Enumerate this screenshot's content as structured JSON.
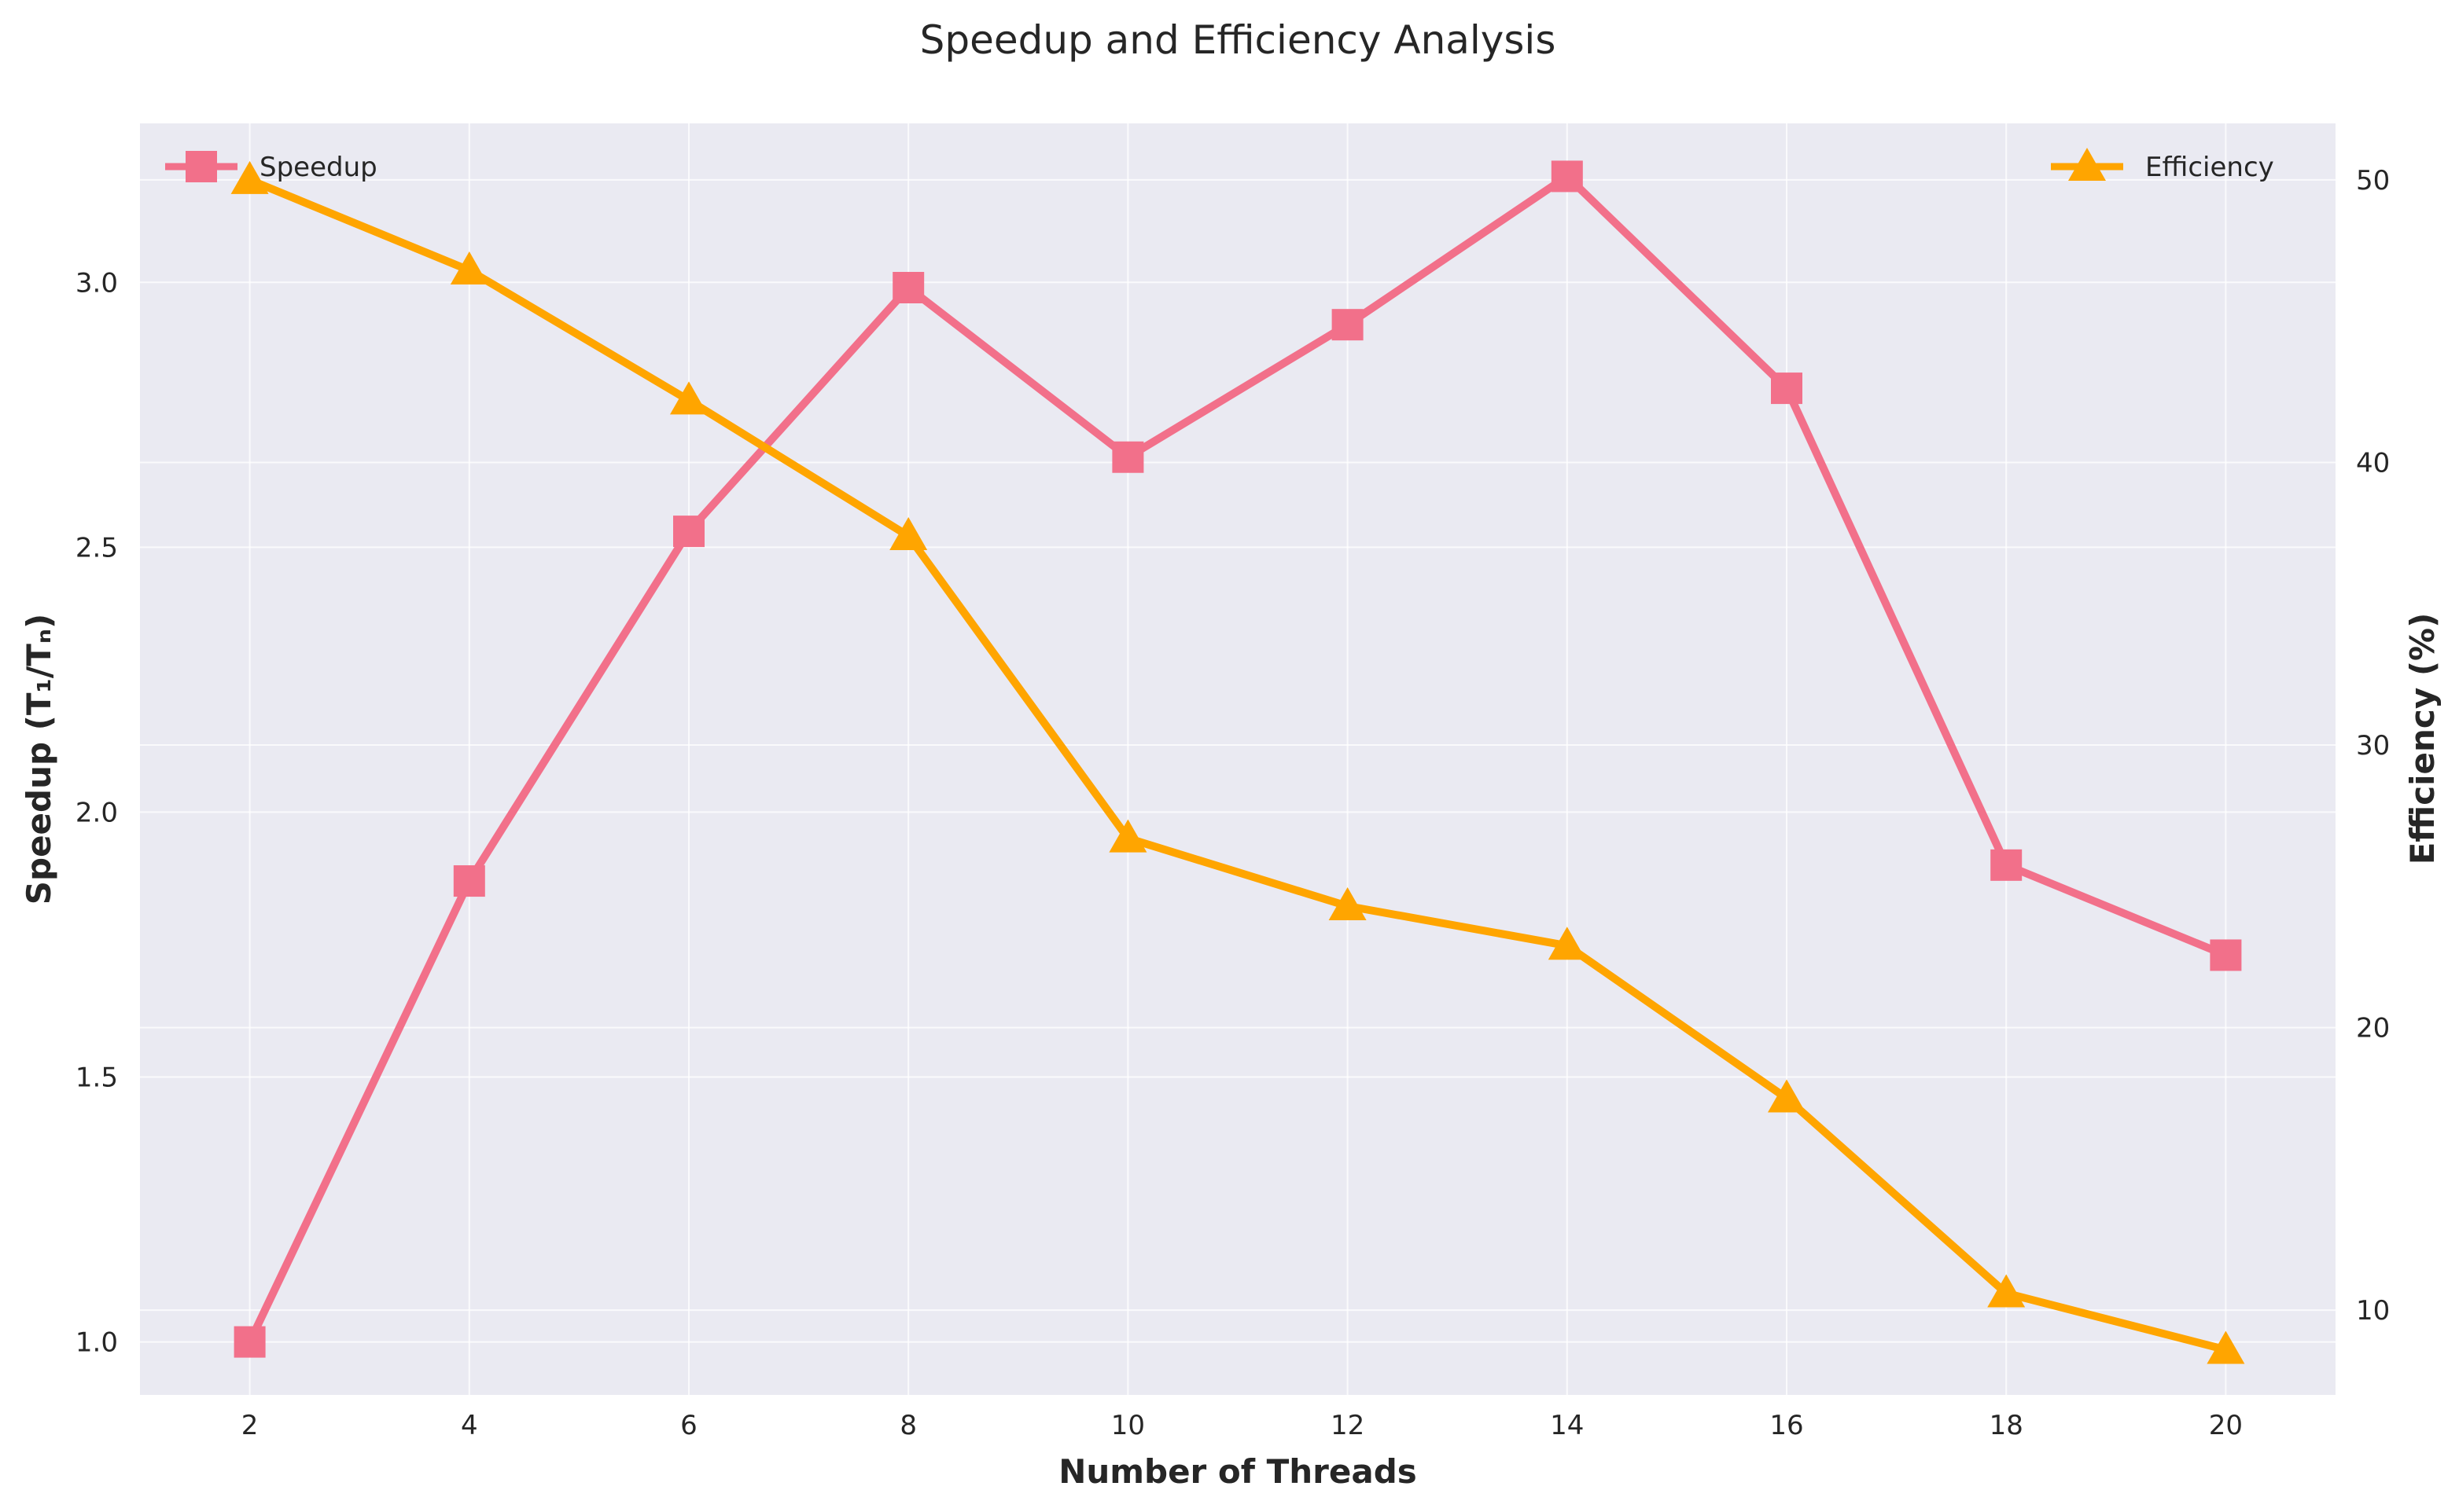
{
  "chart_data": {
    "type": "line",
    "title": "Speedup and Efficiency Analysis",
    "xlabel": "Number of Threads",
    "ylabel_left": "Speedup (T₁/Tₙ)",
    "ylabel_right": "Efficiency (%)",
    "x": [
      2,
      4,
      6,
      8,
      10,
      12,
      14,
      16,
      18,
      20
    ],
    "xlim": [
      1,
      21
    ],
    "x_ticks": [
      "2",
      "4",
      "6",
      "8",
      "10",
      "12",
      "14",
      "16",
      "18",
      "20"
    ],
    "ylim_left": [
      0.9,
      3.3
    ],
    "y_ticks_left": [
      "1.0",
      "1.5",
      "2.0",
      "2.5",
      "3.0"
    ],
    "ylim_right": [
      7,
      52
    ],
    "y_ticks_right": [
      "10",
      "20",
      "30",
      "40",
      "50"
    ],
    "grid": true,
    "series": [
      {
        "name": "Speedup",
        "axis": "left",
        "marker": "square",
        "color": "#f2708a",
        "values": [
          1.0,
          1.87,
          2.53,
          2.99,
          2.67,
          2.92,
          3.2,
          2.8,
          1.9,
          1.73
        ],
        "legend_position": "upper-left"
      },
      {
        "name": "Efficiency",
        "axis": "right",
        "marker": "triangle",
        "color": "#ffa500",
        "values": [
          50.0,
          46.8,
          42.2,
          37.4,
          26.7,
          24.3,
          22.9,
          17.5,
          10.6,
          8.6
        ],
        "legend_position": "upper-right"
      }
    ],
    "colors": {
      "plot_background": "#eaeaf2",
      "grid": "#ffffff"
    }
  }
}
